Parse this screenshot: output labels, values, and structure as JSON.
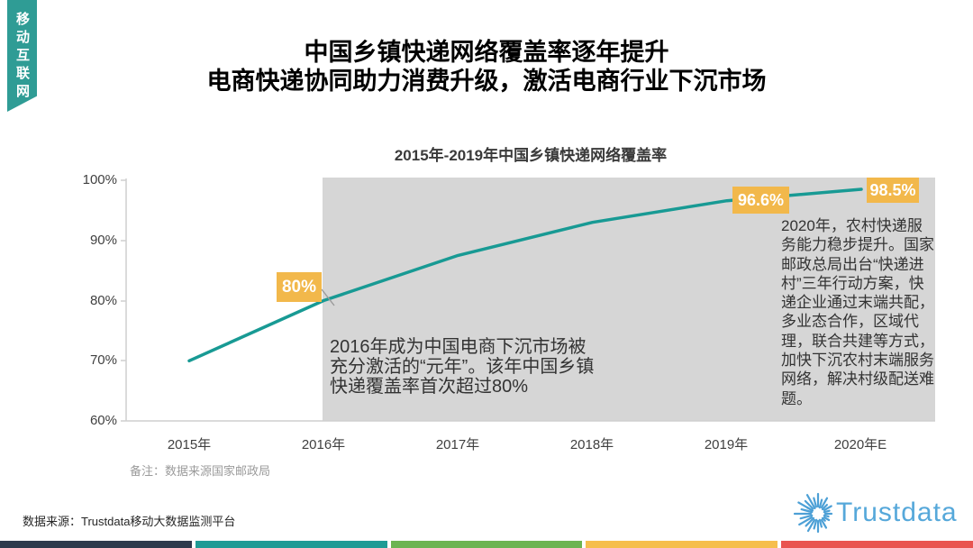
{
  "ribbon": {
    "label": "移动互联网"
  },
  "header": {
    "title_line1": "中国乡镇快递网络覆盖率逐年提升",
    "title_line2": "电商快递协同助力消费升级，激活电商行业下沉市场"
  },
  "chart_data": {
    "type": "line",
    "title": "2015年-2019年中国乡镇快递网络覆盖率",
    "categories": [
      "2015年",
      "2016年",
      "2017年",
      "2018年",
      "2019年",
      "2020年E"
    ],
    "values": [
      70,
      80,
      87.5,
      93,
      96.6,
      98.5
    ],
    "point_labels": [
      "",
      "80%",
      "",
      "",
      "96.6%",
      "98.5%"
    ],
    "y_tick_labels": [
      "100%",
      "90%",
      "80%",
      "70%",
      "60%"
    ],
    "ylim": [
      60,
      100
    ],
    "grid": false,
    "legend": "none",
    "line_color": "#189A94",
    "label_bg_color": "#F2B84B",
    "highlight_region": {
      "from": "2016年",
      "to": "2020年E",
      "color": "#D6D6D6"
    }
  },
  "chart": {
    "annotation_2016": "2016年成为中国电商下沉市场被充分激活的“元年”。该年中国乡镇快递覆盖率首次超过80%",
    "annotation_2020": "2020年，农村快递服务能力稳步提升。国家邮政总局出台“快递进村”三年行动方案，快递企业通过末端共配，多业态合作，区域代理，联合共建等方式，加快下沉农村末端服务网络，解决村级配送难题。",
    "footnote": "备注：数据来源国家邮政局"
  },
  "footer": {
    "source": "数据来源：Trustdata移动大数据监测平台",
    "brand": "Trustdata"
  },
  "brand_bar_colors": [
    "#2D3A4C",
    "#1F9B95",
    "#6CB451",
    "#F6BE4D",
    "#E95450"
  ],
  "logo_color": "#4DA0D6"
}
